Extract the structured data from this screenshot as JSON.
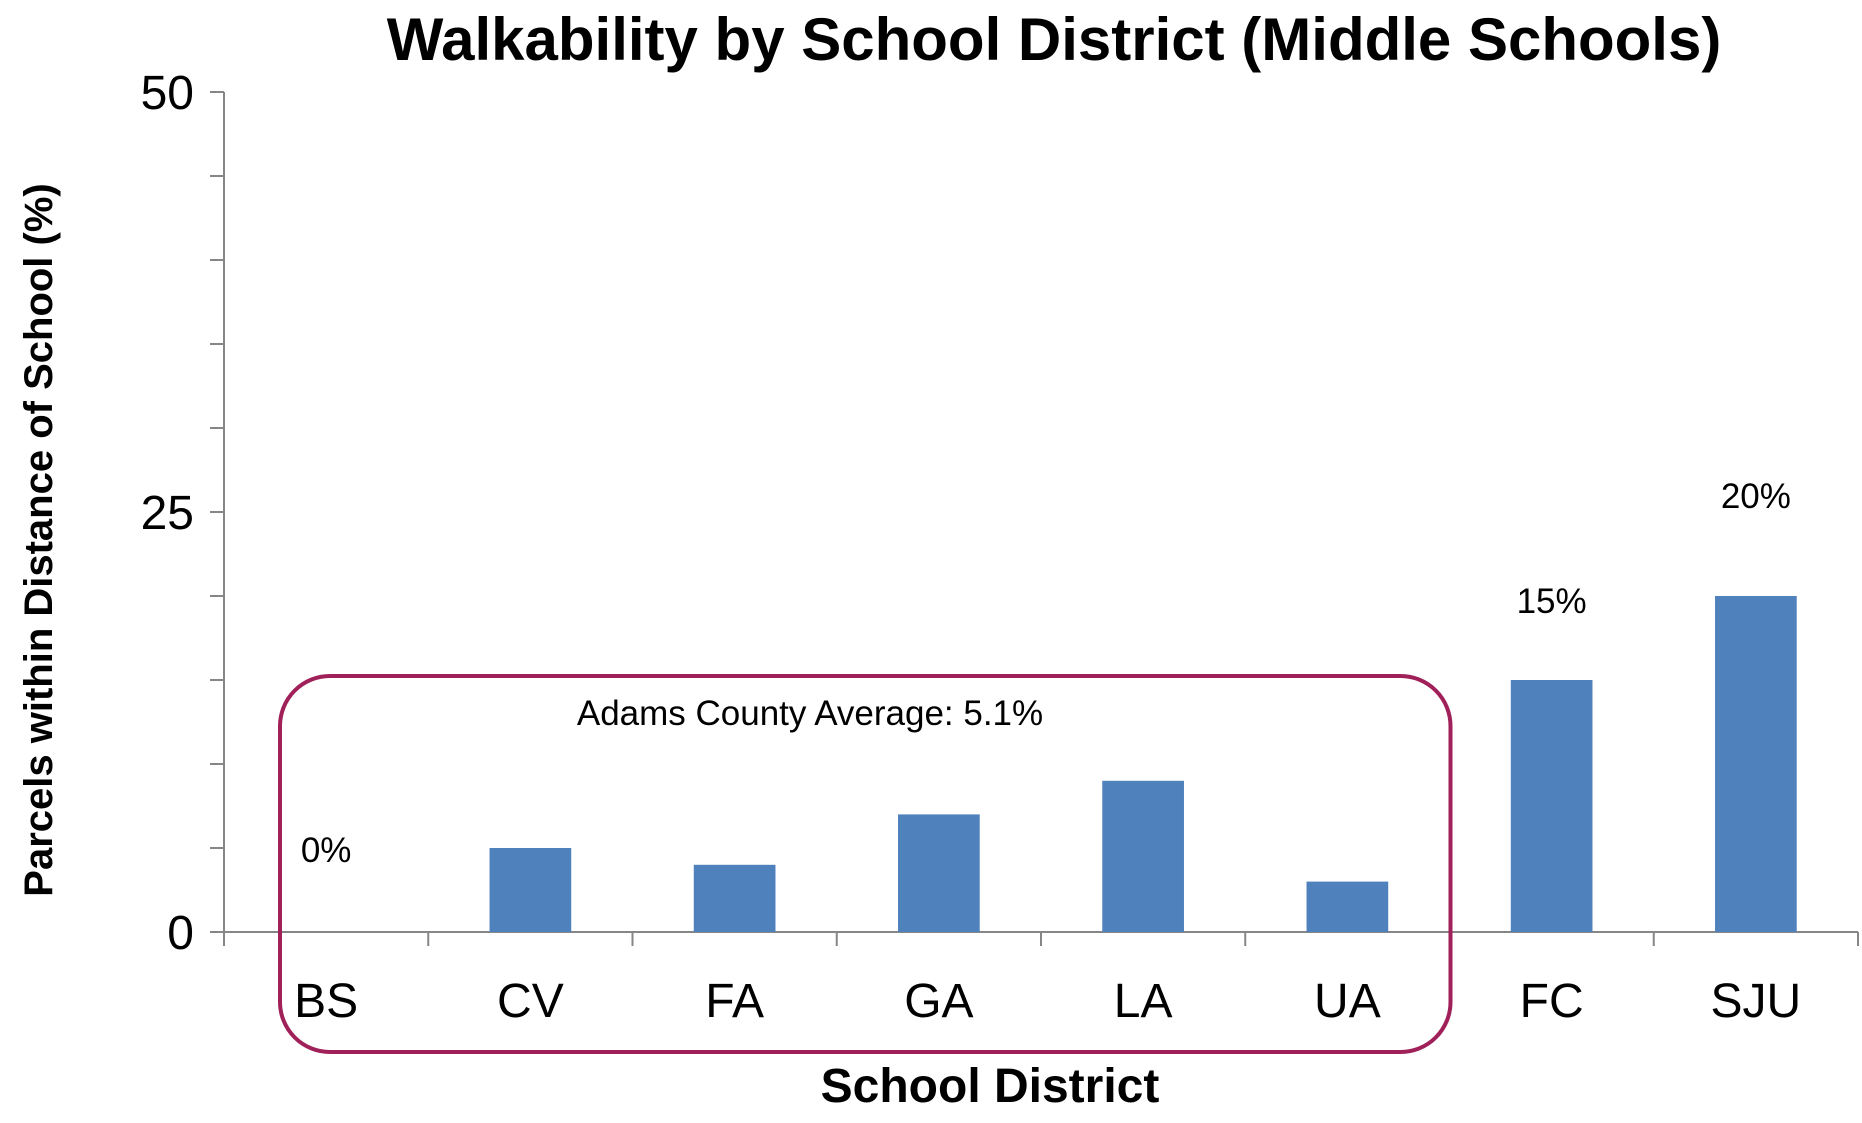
{
  "chart_data": {
    "type": "bar",
    "title": "Walkability by School District (Middle Schools)",
    "xlabel": "School District",
    "ylabel": "Parcels within Distance of School (%)",
    "ylim": [
      0,
      50
    ],
    "yticks": [
      "0",
      "25",
      "50"
    ],
    "categories": [
      "BS",
      "CV",
      "FA",
      "GA",
      "LA",
      "UA",
      "FC",
      "SJU"
    ],
    "values": [
      0,
      5,
      4,
      7,
      9,
      3,
      15,
      20
    ],
    "data_labels": [
      {
        "category": "BS",
        "text": "0%"
      },
      {
        "category": "FC",
        "text": "15%"
      },
      {
        "category": "SJU",
        "text": "20%"
      }
    ],
    "grid": false,
    "legend": "none",
    "bar_color": "#4F81BD",
    "highlight_group": {
      "categories": [
        "BS",
        "CV",
        "FA",
        "GA",
        "LA",
        "UA"
      ],
      "label": "Adams County Average: 5.1%",
      "border_color": "#A0205A"
    }
  }
}
